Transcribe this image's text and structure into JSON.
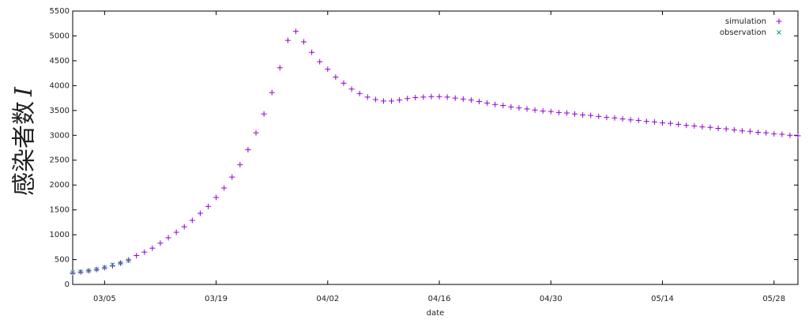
{
  "chart_data": {
    "type": "scatter",
    "xlabel": "date",
    "ylabel": "感染者数",
    "ylabel_symbol": "I",
    "xlim": [
      "03/01",
      "05/31"
    ],
    "xticks": [
      "03/05",
      "03/19",
      "04/02",
      "04/16",
      "04/30",
      "05/14",
      "05/28"
    ],
    "ylim": [
      0,
      5500
    ],
    "yticks": [
      0,
      500,
      1000,
      1500,
      2000,
      2500,
      3000,
      3500,
      4000,
      4500,
      5000,
      5500
    ],
    "legend": "top-right",
    "series": [
      {
        "name": "simulation",
        "color": "#9400d3",
        "marker": "+",
        "x": [
          "03/01",
          "03/02",
          "03/03",
          "03/04",
          "03/05",
          "03/06",
          "03/07",
          "03/08",
          "03/09",
          "03/10",
          "03/11",
          "03/12",
          "03/13",
          "03/14",
          "03/15",
          "03/16",
          "03/17",
          "03/18",
          "03/19",
          "03/20",
          "03/21",
          "03/22",
          "03/23",
          "03/24",
          "03/25",
          "03/26",
          "03/27",
          "03/28",
          "03/29",
          "03/30",
          "03/31",
          "04/01",
          "04/02",
          "04/03",
          "04/04",
          "04/05",
          "04/06",
          "04/07",
          "04/08",
          "04/09",
          "04/10",
          "04/11",
          "04/12",
          "04/13",
          "04/14",
          "04/15",
          "04/16",
          "04/17",
          "04/18",
          "04/19",
          "04/20",
          "04/21",
          "04/22",
          "04/23",
          "04/24",
          "04/25",
          "04/26",
          "04/27",
          "04/28",
          "04/29",
          "04/30",
          "05/01",
          "05/02",
          "05/03",
          "05/04",
          "05/05",
          "05/06",
          "05/07",
          "05/08",
          "05/09",
          "05/10",
          "05/11",
          "05/12",
          "05/13",
          "05/14",
          "05/15",
          "05/16",
          "05/17",
          "05/18",
          "05/19",
          "05/20",
          "05/21",
          "05/22",
          "05/23",
          "05/24",
          "05/25",
          "05/26",
          "05/27",
          "05/28",
          "05/29",
          "05/30",
          "05/31"
        ],
        "values": [
          230,
          250,
          275,
          300,
          335,
          375,
          430,
          490,
          580,
          650,
          730,
          830,
          940,
          1050,
          1160,
          1290,
          1430,
          1570,
          1750,
          1940,
          2160,
          2410,
          2710,
          3050,
          3430,
          3860,
          4360,
          4910,
          5090,
          4880,
          4670,
          4480,
          4330,
          4170,
          4050,
          3930,
          3840,
          3770,
          3720,
          3690,
          3690,
          3710,
          3740,
          3760,
          3770,
          3780,
          3780,
          3770,
          3750,
          3730,
          3710,
          3680,
          3650,
          3620,
          3600,
          3570,
          3550,
          3530,
          3510,
          3490,
          3480,
          3460,
          3450,
          3430,
          3410,
          3400,
          3380,
          3360,
          3350,
          3330,
          3310,
          3300,
          3280,
          3270,
          3250,
          3240,
          3220,
          3200,
          3190,
          3170,
          3160,
          3140,
          3130,
          3110,
          3090,
          3080,
          3060,
          3050,
          3030,
          3020,
          3000,
          2990
        ]
      },
      {
        "name": "observation",
        "color": "#009e73",
        "marker": "x",
        "x": [
          "03/01",
          "03/02",
          "03/03",
          "03/04",
          "03/05",
          "03/06",
          "03/07",
          "03/08"
        ],
        "values": [
          240,
          255,
          275,
          305,
          345,
          395,
          430,
          480
        ]
      }
    ]
  }
}
